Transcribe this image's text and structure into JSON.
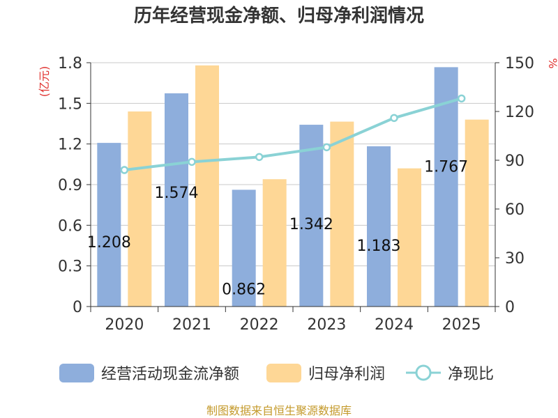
{
  "chart_data": {
    "type": "bar",
    "title": "历年经营现金净额、归母净利润情况",
    "categories": [
      "2020",
      "2021",
      "2022",
      "2023",
      "2024",
      "2025"
    ],
    "series": [
      {
        "name": "经营活动现金流净额",
        "type": "bar",
        "axis": "left",
        "color": "#8eaedc",
        "values": [
          1.208,
          1.574,
          0.862,
          1.342,
          1.183,
          1.767
        ],
        "labels": [
          "1.208",
          "1.574",
          "0.862",
          "1.342",
          "1.183",
          "1.767"
        ]
      },
      {
        "name": "归母净利润",
        "type": "bar",
        "axis": "left",
        "color": "#fed796",
        "values": [
          1.44,
          1.78,
          0.94,
          1.365,
          1.02,
          1.38
        ]
      },
      {
        "name": "净现比",
        "type": "line",
        "axis": "right",
        "color": "#8ad2d5",
        "values": [
          84,
          89,
          92,
          98,
          116,
          128
        ]
      }
    ],
    "y_left": {
      "label": "(亿元)",
      "min": 0,
      "max": 1.8,
      "ticks": [
        "0",
        "0.3",
        "0.6",
        "0.9",
        "1.2",
        "1.5",
        "1.8"
      ]
    },
    "y_right": {
      "label": "%",
      "min": 0,
      "max": 150,
      "ticks": [
        "0",
        "30",
        "60",
        "90",
        "120",
        "150"
      ]
    },
    "grid": true,
    "legend_position": "bottom",
    "source": "制图数据来自恒生聚源数据库"
  }
}
